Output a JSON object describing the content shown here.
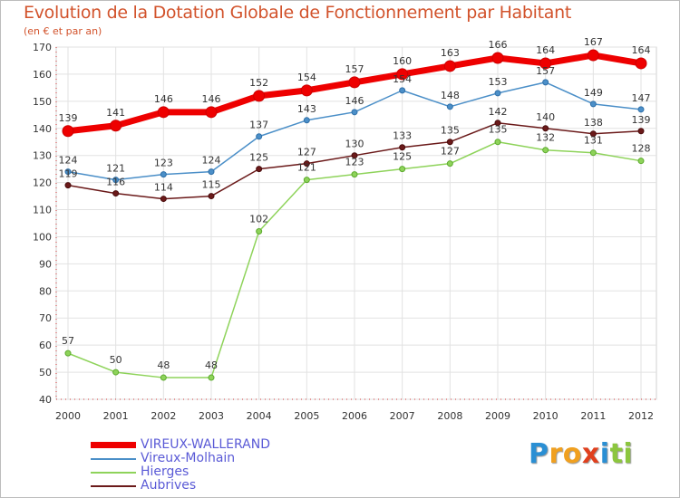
{
  "title": "Evolution de la Dotation Globale de Fonctionnement par Habitant",
  "subtitle": "(en € et par an)",
  "logo": {
    "text": "Proxiti",
    "letters": [
      {
        "ch": "P",
        "color": "#2a8fd4"
      },
      {
        "ch": "r",
        "color": "#f0a020"
      },
      {
        "ch": "o",
        "color": "#f0a020"
      },
      {
        "ch": "x",
        "color": "#e0401e"
      },
      {
        "ch": "i",
        "color": "#2a8fd4"
      },
      {
        "ch": "t",
        "color": "#8cc63e"
      },
      {
        "ch": "i",
        "color": "#8cc63e"
      }
    ]
  },
  "chart_data": {
    "type": "line",
    "title": "Evolution de la Dotation Globale de Fonctionnement par Habitant",
    "subtitle": "(en € et par an)",
    "xlabel": "",
    "ylabel": "",
    "ylim": [
      40,
      170
    ],
    "yticks": [
      "40",
      "50",
      "60",
      "70",
      "80",
      "90",
      "100",
      "110",
      "120",
      "130",
      "140",
      "150",
      "160",
      "170"
    ],
    "categories": [
      "2000",
      "2001",
      "2002",
      "2003",
      "2004",
      "2005",
      "2006",
      "2007",
      "2008",
      "2009",
      "2010",
      "2011",
      "2012"
    ],
    "grid": true,
    "legend_position": "bottom-left",
    "series": [
      {
        "name": "VIREUX-WALLERAND",
        "color": "#ee0000",
        "values": [
          139,
          141,
          146,
          146,
          152,
          154,
          157,
          160,
          163,
          166,
          164,
          167,
          164
        ]
      },
      {
        "name": "Vireux-Molhain",
        "color": "#4b8fc8",
        "values": [
          124,
          121,
          123,
          124,
          137,
          143,
          146,
          154,
          148,
          153,
          157,
          149,
          147
        ]
      },
      {
        "name": "Hierges",
        "color": "#8ed35a",
        "values": [
          57,
          50,
          48,
          48,
          102,
          121,
          123,
          125,
          127,
          135,
          132,
          131,
          128
        ]
      },
      {
        "name": "Aubrives",
        "color": "#6b1a1a",
        "values": [
          119,
          116,
          114,
          115,
          125,
          127,
          130,
          133,
          135,
          142,
          140,
          138,
          139
        ]
      }
    ]
  }
}
